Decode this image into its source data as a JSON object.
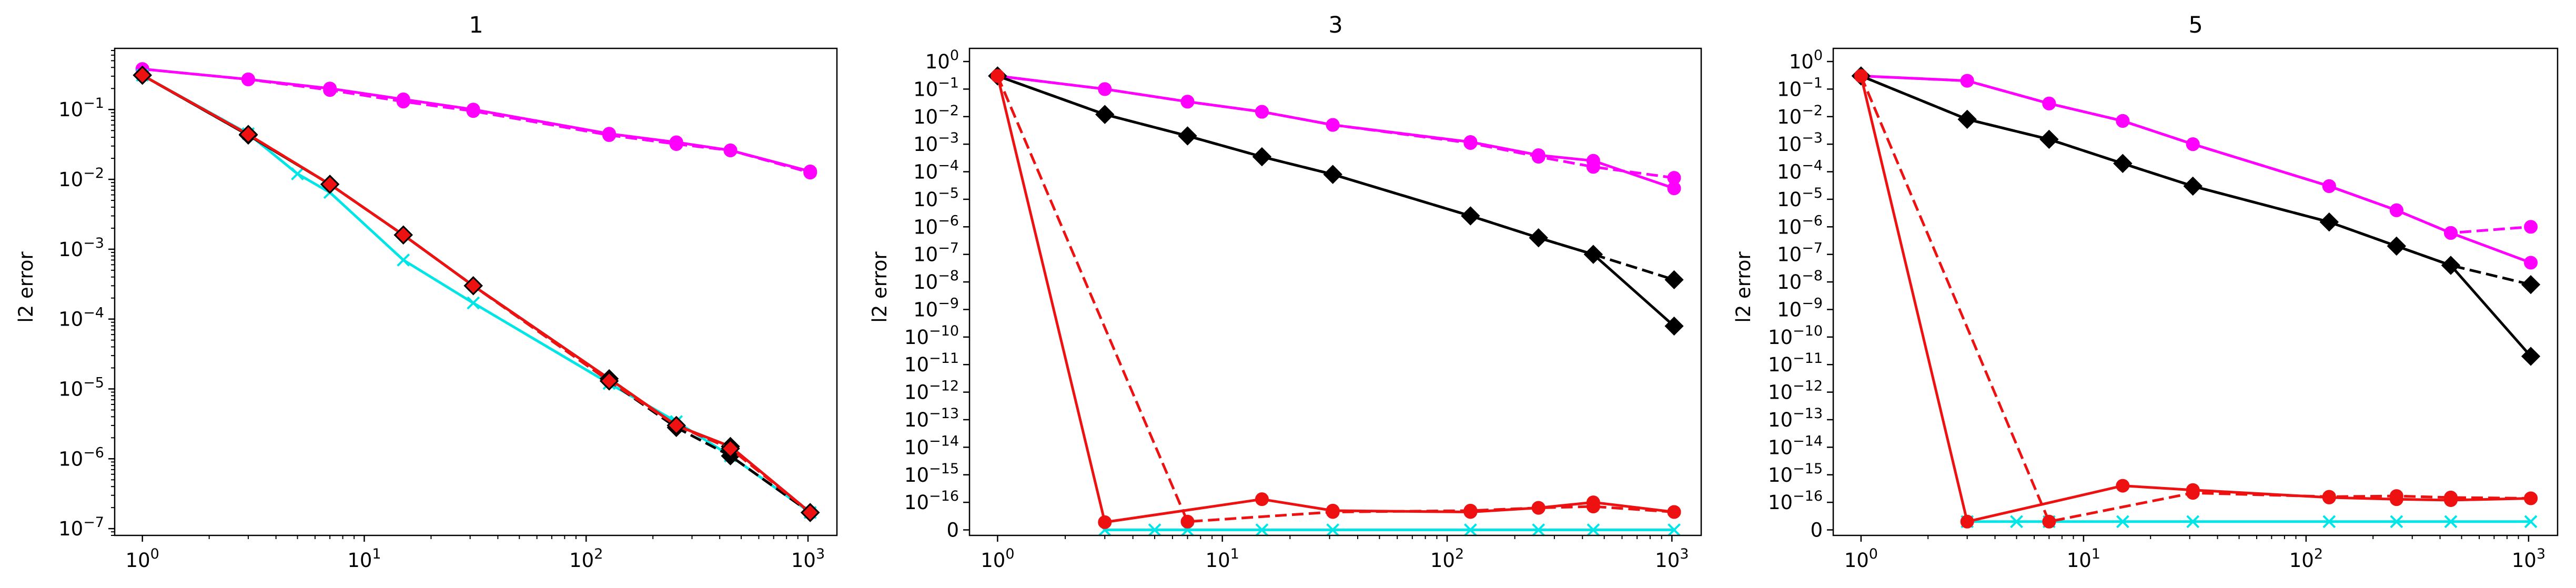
{
  "chart_data": [
    {
      "type": "line",
      "title": "1",
      "ylabel": "l2 error",
      "xscale": "log",
      "yscale": "log",
      "xlim": [
        0.75,
        1350
      ],
      "ylim": [
        8e-08,
        0.75
      ],
      "xticks": [
        {
          "base": "10",
          "exp": "0",
          "value": 1
        },
        {
          "base": "10",
          "exp": "1",
          "value": 10
        },
        {
          "base": "10",
          "exp": "2",
          "value": 100
        },
        {
          "base": "10",
          "exp": "3",
          "value": 1000
        }
      ],
      "yticks": [
        {
          "base": "10",
          "exp": "−1",
          "value": 0.1
        },
        {
          "base": "10",
          "exp": "−2",
          "value": 0.01
        },
        {
          "base": "10",
          "exp": "−3",
          "value": 0.001
        },
        {
          "base": "10",
          "exp": "−4",
          "value": 0.0001
        },
        {
          "base": "10",
          "exp": "−5",
          "value": 1e-05
        },
        {
          "base": "10",
          "exp": "−6",
          "value": 1e-06
        },
        {
          "base": "10",
          "exp": "−7",
          "value": 1e-07
        }
      ],
      "grid": false,
      "series": [
        {
          "color": "#ff00ff",
          "linestyle": "solid",
          "marker": "circle",
          "x": [
            1,
            3,
            7,
            15,
            31,
            127,
            255,
            447,
            1023
          ],
          "y": [
            0.38,
            0.27,
            0.2,
            0.14,
            0.1,
            0.045,
            0.034,
            0.026,
            0.013
          ]
        },
        {
          "color": "#ff00ff",
          "linestyle": "dashed",
          "marker": "circle",
          "x": [
            1,
            3,
            7,
            15,
            31,
            127,
            255,
            447,
            1023
          ],
          "y": [
            0.38,
            0.27,
            0.19,
            0.13,
            0.095,
            0.043,
            0.032,
            0.026,
            0.0125
          ]
        },
        {
          "color": "#00e5e5",
          "linestyle": "solid",
          "marker": "x",
          "x": [
            1,
            3,
            5,
            7,
            15,
            31,
            127,
            255,
            447,
            1023
          ],
          "y": [
            0.31,
            0.045,
            0.012,
            0.0065,
            0.0007,
            0.00017,
            1.2e-05,
            3.4e-06,
            1.1e-06,
            1.7e-07
          ]
        },
        {
          "color": "#000000",
          "linestyle": "solid",
          "marker": "diamond",
          "x": [
            1,
            3,
            7,
            15,
            31,
            127,
            255,
            447,
            1023
          ],
          "y": [
            0.31,
            0.043,
            0.0085,
            0.0016,
            0.0003,
            1.4e-05,
            3e-06,
            1.5e-06,
            1.7e-07
          ]
        },
        {
          "color": "#000000",
          "linestyle": "dashed",
          "marker": "diamond",
          "x": [
            1,
            3,
            7,
            15,
            31,
            127,
            255,
            447,
            1023
          ],
          "y": [
            0.31,
            0.043,
            0.0085,
            0.0016,
            0.0003,
            1.3e-05,
            2.8e-06,
            1.1e-06,
            1.7e-07
          ]
        },
        {
          "color": "#ee1111",
          "linestyle": "solid",
          "marker": "diamond",
          "x": [
            1,
            3,
            7,
            15,
            31,
            127,
            255,
            447,
            1023
          ],
          "y": [
            0.31,
            0.044,
            0.0085,
            0.0016,
            0.0003,
            1.4e-05,
            3e-06,
            1.5e-06,
            1.7e-07
          ]
        },
        {
          "color": "#ee1111",
          "linestyle": "dashed",
          "marker": "diamond",
          "x": [
            1,
            3,
            7,
            15,
            31,
            127,
            255,
            447,
            1023
          ],
          "y": [
            0.31,
            0.044,
            0.0085,
            0.0016,
            0.0003,
            1.3e-05,
            3e-06,
            1.4e-06,
            1.7e-07
          ]
        }
      ]
    },
    {
      "type": "line",
      "title": "3",
      "ylabel": "l2 error",
      "xscale": "log",
      "yscale": "symlog",
      "linthresh": 1e-16,
      "xlim": [
        0.75,
        1350
      ],
      "ylim": [
        -2e-17,
        3
      ],
      "xticks": [
        {
          "base": "10",
          "exp": "0",
          "value": 1
        },
        {
          "base": "10",
          "exp": "1",
          "value": 10
        },
        {
          "base": "10",
          "exp": "2",
          "value": 100
        },
        {
          "base": "10",
          "exp": "3",
          "value": 1000
        }
      ],
      "yticks": [
        {
          "label": "0",
          "value": 0
        },
        {
          "base": "10",
          "exp": "−16",
          "value": 1e-16
        },
        {
          "base": "10",
          "exp": "−15",
          "value": 1e-15
        },
        {
          "base": "10",
          "exp": "−14",
          "value": 1e-14
        },
        {
          "base": "10",
          "exp": "−13",
          "value": 1e-13
        },
        {
          "base": "10",
          "exp": "−12",
          "value": 1e-12
        },
        {
          "base": "10",
          "exp": "−11",
          "value": 1e-11
        },
        {
          "base": "10",
          "exp": "−10",
          "value": 1e-10
        },
        {
          "base": "10",
          "exp": "−9",
          "value": 1e-09
        },
        {
          "base": "10",
          "exp": "−8",
          "value": 1e-08
        },
        {
          "base": "10",
          "exp": "−7",
          "value": 1e-07
        },
        {
          "base": "10",
          "exp": "−6",
          "value": 1e-06
        },
        {
          "base": "10",
          "exp": "−5",
          "value": 1e-05
        },
        {
          "base": "10",
          "exp": "−4",
          "value": 0.0001
        },
        {
          "base": "10",
          "exp": "−3",
          "value": 0.001
        },
        {
          "base": "10",
          "exp": "−2",
          "value": 0.01
        },
        {
          "base": "10",
          "exp": "−1",
          "value": 0.1
        },
        {
          "base": "10",
          "exp": "0",
          "value": 1
        }
      ],
      "grid": false,
      "series": [
        {
          "color": "#ff00ff",
          "linestyle": "solid",
          "marker": "circle",
          "x": [
            1,
            3,
            7,
            15,
            31,
            127,
            255,
            447,
            1023
          ],
          "y": [
            0.3,
            0.1,
            0.035,
            0.015,
            0.005,
            0.0012,
            0.0004,
            0.00025,
            2.5e-05
          ]
        },
        {
          "color": "#ff00ff",
          "linestyle": "dashed",
          "marker": "circle",
          "x": [
            1,
            3,
            7,
            15,
            31,
            127,
            255,
            447,
            1023
          ],
          "y": [
            0.3,
            0.1,
            0.035,
            0.015,
            0.005,
            0.0011,
            0.00035,
            0.00015,
            6e-05
          ]
        },
        {
          "color": "#00e5e5",
          "linestyle": "solid",
          "marker": "x",
          "x": [
            3,
            5,
            7,
            15,
            31,
            127,
            255,
            447,
            1023
          ],
          "y": [
            0,
            0,
            0,
            0,
            0,
            0,
            0,
            0,
            0
          ]
        },
        {
          "color": "#000000",
          "linestyle": "solid",
          "marker": "diamond",
          "x": [
            1,
            3,
            7,
            15,
            31,
            127,
            255,
            447,
            1023
          ],
          "y": [
            0.3,
            0.012,
            0.002,
            0.00035,
            8e-05,
            2.5e-06,
            4e-07,
            1e-07,
            2.5e-10
          ]
        },
        {
          "color": "#000000",
          "linestyle": "dashed",
          "marker": "diamond",
          "x": [
            1,
            3,
            7,
            15,
            31,
            127,
            255,
            447,
            1023
          ],
          "y": [
            0.3,
            0.012,
            0.002,
            0.00035,
            8e-05,
            2.5e-06,
            4e-07,
            1e-07,
            1.2e-08
          ]
        },
        {
          "color": "#ee1111",
          "linestyle": "solid",
          "marker": "circle",
          "x": [
            1,
            3,
            15,
            31,
            127,
            255,
            447,
            1023
          ],
          "y": [
            0.3,
            2.8e-17,
            1.3e-16,
            7e-17,
            6.5e-17,
            8e-17,
            1e-16,
            6.5e-17
          ]
        },
        {
          "color": "#ee1111",
          "linestyle": "dashed",
          "marker": "circle",
          "x": [
            1,
            7,
            31,
            127,
            255,
            447,
            1023
          ],
          "y": [
            0.3,
            3e-17,
            6.5e-17,
            7e-17,
            8e-17,
            8.5e-17,
            6.5e-17
          ]
        }
      ]
    },
    {
      "type": "line",
      "title": "5",
      "ylabel": "l2 error",
      "xscale": "log",
      "yscale": "symlog",
      "linthresh": 1e-16,
      "xlim": [
        0.75,
        1350
      ],
      "ylim": [
        -2e-17,
        3
      ],
      "xticks": [
        {
          "base": "10",
          "exp": "0",
          "value": 1
        },
        {
          "base": "10",
          "exp": "1",
          "value": 10
        },
        {
          "base": "10",
          "exp": "2",
          "value": 100
        },
        {
          "base": "10",
          "exp": "3",
          "value": 1000
        }
      ],
      "yticks": [
        {
          "label": "0",
          "value": 0
        },
        {
          "base": "10",
          "exp": "−16",
          "value": 1e-16
        },
        {
          "base": "10",
          "exp": "−15",
          "value": 1e-15
        },
        {
          "base": "10",
          "exp": "−14",
          "value": 1e-14
        },
        {
          "base": "10",
          "exp": "−13",
          "value": 1e-13
        },
        {
          "base": "10",
          "exp": "−12",
          "value": 1e-12
        },
        {
          "base": "10",
          "exp": "−11",
          "value": 1e-11
        },
        {
          "base": "10",
          "exp": "−10",
          "value": 1e-10
        },
        {
          "base": "10",
          "exp": "−9",
          "value": 1e-09
        },
        {
          "base": "10",
          "exp": "−8",
          "value": 1e-08
        },
        {
          "base": "10",
          "exp": "−7",
          "value": 1e-07
        },
        {
          "base": "10",
          "exp": "−6",
          "value": 1e-06
        },
        {
          "base": "10",
          "exp": "−5",
          "value": 1e-05
        },
        {
          "base": "10",
          "exp": "−4",
          "value": 0.0001
        },
        {
          "base": "10",
          "exp": "−3",
          "value": 0.001
        },
        {
          "base": "10",
          "exp": "−2",
          "value": 0.01
        },
        {
          "base": "10",
          "exp": "−1",
          "value": 0.1
        },
        {
          "base": "10",
          "exp": "0",
          "value": 1
        }
      ],
      "grid": false,
      "series": [
        {
          "color": "#ff00ff",
          "linestyle": "solid",
          "marker": "circle",
          "x": [
            1,
            3,
            7,
            15,
            31,
            127,
            255,
            447,
            1023
          ],
          "y": [
            0.3,
            0.2,
            0.03,
            0.007,
            0.001,
            3e-05,
            4e-06,
            6e-07,
            5e-08
          ]
        },
        {
          "color": "#ff00ff",
          "linestyle": "dashed",
          "marker": "circle",
          "x": [
            1,
            3,
            7,
            15,
            31,
            127,
            255,
            447,
            1023
          ],
          "y": [
            0.3,
            0.2,
            0.03,
            0.007,
            0.001,
            3e-05,
            4e-06,
            6e-07,
            1e-06
          ]
        },
        {
          "color": "#00e5e5",
          "linestyle": "solid",
          "marker": "x",
          "x": [
            3,
            5,
            7,
            15,
            31,
            127,
            255,
            447,
            1023
          ],
          "y": [
            3e-17,
            3e-17,
            3e-17,
            3e-17,
            3e-17,
            3e-17,
            3e-17,
            3e-17,
            3e-17
          ]
        },
        {
          "color": "#000000",
          "linestyle": "solid",
          "marker": "diamond",
          "x": [
            1,
            3,
            7,
            15,
            31,
            127,
            255,
            447,
            1023
          ],
          "y": [
            0.3,
            0.008,
            0.0015,
            0.0002,
            3e-05,
            1.5e-06,
            2e-07,
            4e-08,
            2e-11
          ]
        },
        {
          "color": "#000000",
          "linestyle": "dashed",
          "marker": "diamond",
          "x": [
            1,
            3,
            7,
            15,
            31,
            127,
            255,
            447,
            1023
          ],
          "y": [
            0.3,
            0.008,
            0.0015,
            0.0002,
            3e-05,
            1.5e-06,
            2e-07,
            4e-08,
            8e-09
          ]
        },
        {
          "color": "#ee1111",
          "linestyle": "solid",
          "marker": "circle",
          "x": [
            1,
            3,
            15,
            31,
            127,
            255,
            447,
            1023
          ],
          "y": [
            0.3,
            3e-17,
            4e-16,
            2.8e-16,
            1.5e-16,
            1.3e-16,
            1.2e-16,
            1.4e-16
          ]
        },
        {
          "color": "#ee1111",
          "linestyle": "dashed",
          "marker": "circle",
          "x": [
            1,
            7,
            31,
            127,
            255,
            447,
            1023
          ],
          "y": [
            0.3,
            3e-17,
            2.2e-16,
            1.6e-16,
            1.7e-16,
            1.5e-16,
            1.4e-16
          ]
        }
      ]
    }
  ]
}
